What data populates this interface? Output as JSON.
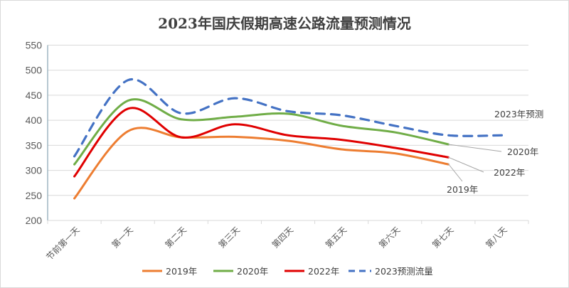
{
  "chart_data": {
    "type": "line",
    "title": "2023年国庆假期高速公路流量预测情况",
    "xlabel": "",
    "ylabel": "",
    "categories": [
      "节前第一天",
      "第一天",
      "第二天",
      "第三天",
      "第四天",
      "第五天",
      "第六天",
      "第七天",
      "第八天"
    ],
    "ylim": [
      200,
      550
    ],
    "yticks": [
      200,
      250,
      300,
      350,
      400,
      450,
      500,
      550
    ],
    "grid": true,
    "legend_position": "bottom",
    "series": [
      {
        "name": "2019年",
        "color": "#ED7D31",
        "dashed": false,
        "values": [
          244,
          378,
          366,
          367,
          359,
          342,
          334,
          312,
          null
        ]
      },
      {
        "name": "2020年",
        "color": "#70AD47",
        "dashed": false,
        "values": [
          312,
          439,
          402,
          407,
          413,
          389,
          376,
          352,
          null
        ]
      },
      {
        "name": "2022年",
        "color": "#E00000",
        "dashed": false,
        "values": [
          288,
          423,
          366,
          392,
          370,
          361,
          345,
          326,
          null
        ]
      },
      {
        "name": "2023预测流量",
        "color": "#4472C4",
        "dashed": true,
        "values": [
          328,
          480,
          414,
          444,
          418,
          410,
          389,
          370,
          370
        ]
      }
    ],
    "annotations": [
      "2023年预测",
      "2020年",
      "2022年",
      "2019年"
    ]
  }
}
